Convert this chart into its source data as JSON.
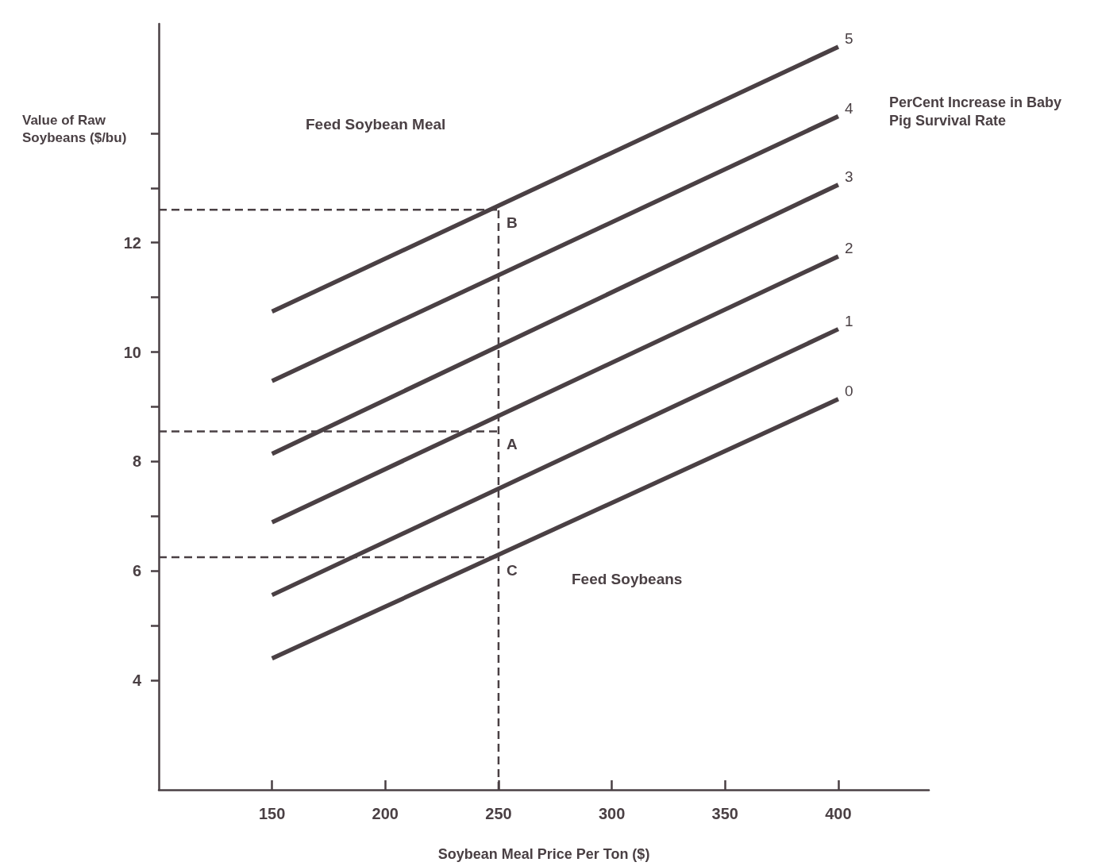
{
  "chart_data": {
    "type": "line",
    "xlabel": "Soybean Meal Price Per Ton ($)",
    "ylabel": "Value of Raw Soybeans ($/bu)",
    "legend_title": "PerCent Increase in Baby Pig Survival Rate",
    "x": [
      150,
      400
    ],
    "series": [
      {
        "name": "0",
        "color": "#4a4044",
        "values": [
          4.4,
          9.14
        ]
      },
      {
        "name": "1",
        "color": "#4a4044",
        "values": [
          5.56,
          10.42
        ]
      },
      {
        "name": "2",
        "color": "#4a4044",
        "values": [
          6.89,
          11.75
        ]
      },
      {
        "name": "3",
        "color": "#4a4044",
        "values": [
          8.14,
          13.06
        ]
      },
      {
        "name": "4",
        "color": "#4a4044",
        "values": [
          9.47,
          14.31
        ]
      },
      {
        "name": "5",
        "color": "#4a4044",
        "values": [
          10.74,
          15.58
        ]
      }
    ],
    "xlim": [
      100,
      440
    ],
    "xticks": [
      150,
      200,
      250,
      300,
      350,
      400
    ],
    "ylim": [
      2,
      16
    ],
    "yticks": [
      4,
      {
        "value": 5,
        "label": null
      },
      6,
      {
        "value": 7,
        "label": null
      },
      8,
      {
        "value": 9,
        "label": null
      },
      10,
      {
        "value": 11,
        "label": null
      },
      12,
      {
        "value": 13,
        "label": null
      },
      {
        "value": 14,
        "label": null
      }
    ],
    "ref_lines": [
      {
        "axis": "x",
        "value": 250,
        "color": "#4a4044",
        "line_style": "dashed"
      },
      {
        "axis": "y",
        "value": 12.6,
        "label": "B",
        "color": "#4a4044",
        "line_style": "dashed"
      },
      {
        "axis": "y",
        "value": 8.55,
        "label": "A",
        "color": "#4a4044",
        "line_style": "dashed"
      },
      {
        "axis": "y",
        "value": 6.25,
        "label": "C",
        "color": "#4a4044",
        "line_style": "dashed"
      }
    ],
    "annotations": [
      "Feed Soybean Meal",
      "Feed Soybeans"
    ],
    "grid": false,
    "legend": false,
    "marker": "none",
    "line_style": "solid"
  }
}
